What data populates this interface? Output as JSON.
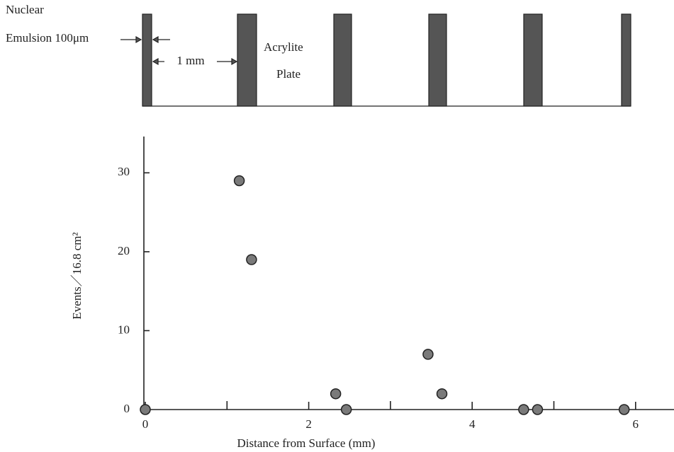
{
  "chart_data": {
    "type": "scatter",
    "annotations": [
      "Nuclear",
      "Emulsion 100μm",
      "1 mm",
      "Acrylite",
      "Plate"
    ],
    "x_label": "Distance from Surface (mm)",
    "y_label": "Events／16.8 cm²",
    "x": [
      0,
      1.15,
      1.3,
      2.33,
      2.46,
      3.46,
      3.63,
      4.63,
      4.8,
      5.86
    ],
    "values": [
      0,
      29,
      19,
      2,
      0,
      7,
      2,
      0,
      0,
      0
    ],
    "color": "#7a7a7a",
    "xlim": [
      0,
      6.47
    ],
    "ylim": [
      0,
      34.6
    ],
    "xticks": [
      0,
      2,
      4,
      6
    ],
    "xminor_ticks": [
      1,
      3,
      5
    ],
    "yticks": [
      0,
      10,
      20,
      30
    ]
  }
}
